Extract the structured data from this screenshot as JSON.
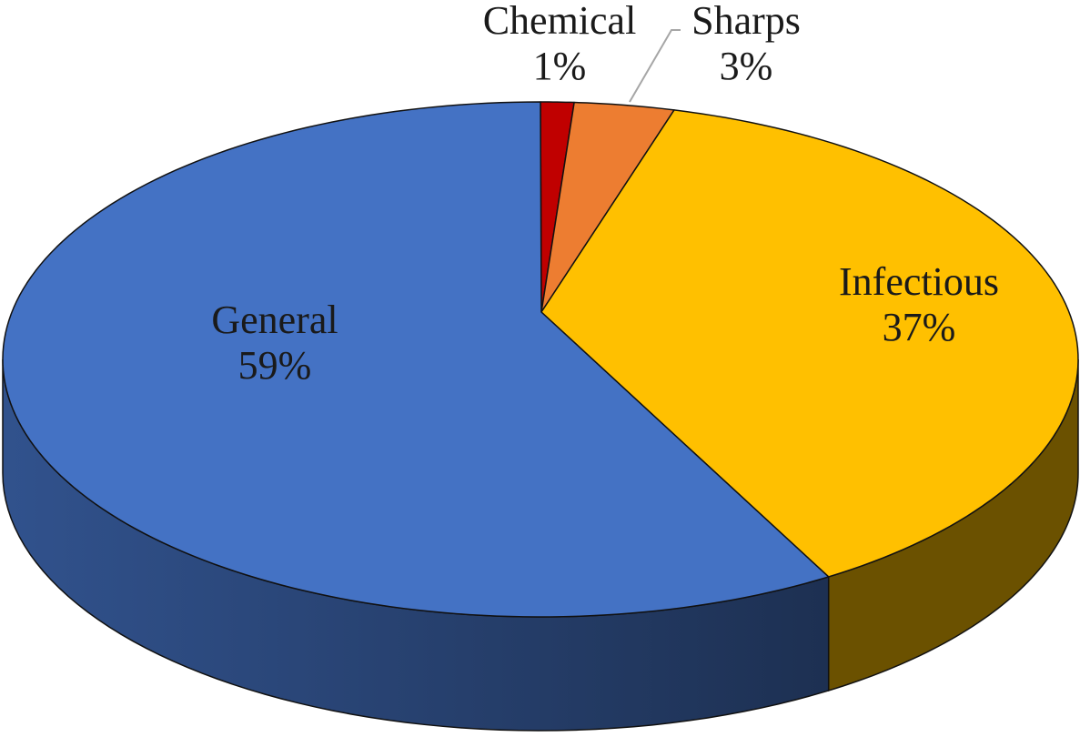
{
  "chart_data": {
    "type": "pie",
    "style": "3d",
    "title": "",
    "categories": [
      "Chemical",
      "Sharps",
      "Infectious",
      "General"
    ],
    "values": [
      1,
      3,
      37,
      59
    ],
    "labels": [
      "1%",
      "3%",
      "37%",
      "59%"
    ],
    "colors": [
      "#C00000",
      "#ED7D31",
      "#FFC000",
      "#4472C4"
    ],
    "legend": "none"
  }
}
